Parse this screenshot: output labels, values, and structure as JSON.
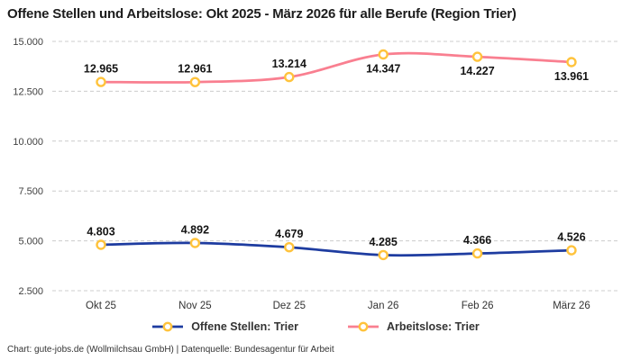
{
  "title": "Offene Stellen und Arbeitslose: Okt 2025 - März 2026 für alle Berufe (Region Trier)",
  "footer": "Chart: gute-jobs.de (Wollmilchsau GmbH) | Datenquelle: Bundesagentur für Arbeit",
  "chart_data": {
    "type": "line",
    "title": "Offene Stellen und Arbeitslose: Okt 2025 - März 2026 für alle Berufe (Region Trier)",
    "categories": [
      "Okt 25",
      "Nov 25",
      "Dez 25",
      "Jan 26",
      "Feb 26",
      "März 26"
    ],
    "series": [
      {
        "name": "Offene Stellen: Trier",
        "color": "#1e3ca0",
        "values": [
          4803,
          4892,
          4679,
          4285,
          4366,
          4526
        ],
        "label_placement": [
          "above",
          "above",
          "above",
          "above",
          "above",
          "above"
        ]
      },
      {
        "name": "Arbeitslose: Trier",
        "color": "#f97f90",
        "values": [
          12965,
          12961,
          13214,
          14347,
          14227,
          13961
        ],
        "label_placement": [
          "above",
          "above",
          "above",
          "below",
          "below",
          "below"
        ]
      }
    ],
    "marker": {
      "fill": "#ffffff",
      "stroke": "#ffc33c"
    },
    "y_axis": {
      "ticks": [
        2500,
        5000,
        7500,
        10000,
        12500,
        15000
      ],
      "min": 2500,
      "max": 15000,
      "grid": "dashed"
    },
    "x_axis": {
      "label": ""
    },
    "number_format": "thousands-dot",
    "legend_position": "bottom-center",
    "grid_color": "#cccccc"
  }
}
